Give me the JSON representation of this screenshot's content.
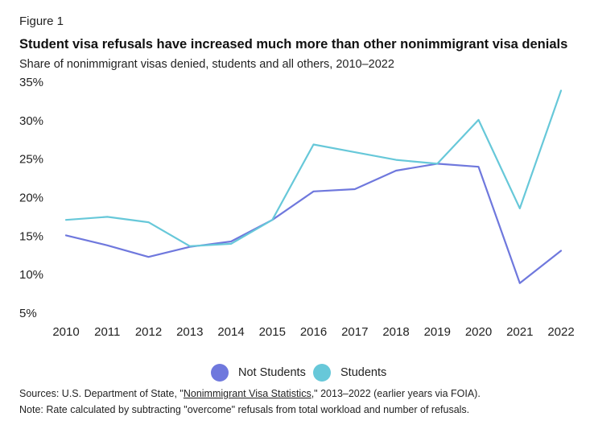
{
  "figure_label": "Figure 1",
  "title": "Student visa refusals have increased much more than other nonimmigrant visa denials",
  "subtitle": "Share of nonimmigrant visas denied, students and all others, 2010–2022",
  "chart_data": {
    "type": "line",
    "x": [
      "2010",
      "2011",
      "2012",
      "2013",
      "2014",
      "2015",
      "2016",
      "2017",
      "2018",
      "2019",
      "2020",
      "2021",
      "2022"
    ],
    "y_ticks": [
      "35%",
      "30%",
      "25%",
      "20%",
      "15%",
      "10%",
      "5%"
    ],
    "ylim": [
      5,
      35
    ],
    "grid": false,
    "legend_position": "bottom-center",
    "series": [
      {
        "name": "Not Students",
        "color": "#6f78dd",
        "values": [
          15.1,
          13.8,
          12.3,
          13.6,
          14.3,
          17.1,
          20.8,
          21.1,
          23.5,
          24.4,
          24.0,
          8.9,
          13.1
        ]
      },
      {
        "name": "Students",
        "color": "#67c8d9",
        "values": [
          17.1,
          17.5,
          16.8,
          13.7,
          14.0,
          17.1,
          26.9,
          25.9,
          24.9,
          24.4,
          30.1,
          18.6,
          33.9
        ]
      }
    ]
  },
  "sources": {
    "prefix": "Sources: U.S. Department of State, \"",
    "link": "Nonimmigrant Visa Statistics",
    "suffix": ",\" 2013–2022 (earlier years via FOIA)."
  },
  "note": "Note: Rate calculated by subtracting \"overcome\" refusals from total workload and number of refusals."
}
